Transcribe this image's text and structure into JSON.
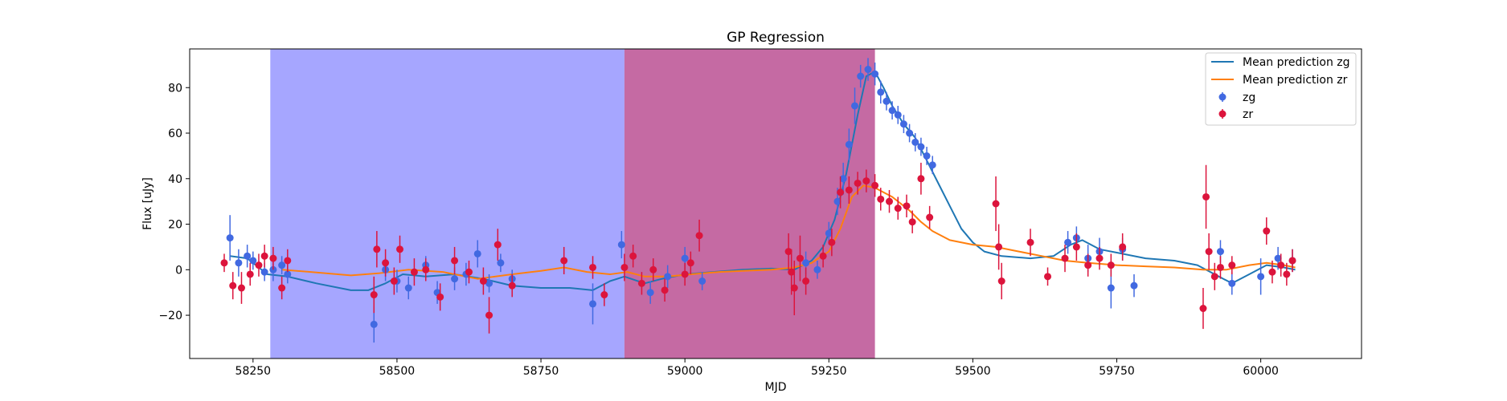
{
  "chart_data": {
    "type": "scatter",
    "title": "GP Regression",
    "xlabel": "MJD",
    "ylabel": "Flux [uJy]",
    "xlim": [
      58140,
      60175
    ],
    "ylim": [
      -39,
      97
    ],
    "xticks": [
      58250,
      58500,
      58750,
      59000,
      59250,
      59500,
      59750,
      60000
    ],
    "yticks": [
      -20,
      0,
      20,
      40,
      60,
      80
    ],
    "grid": false,
    "legend_position": "top-right",
    "shaded_regions": [
      {
        "x": [
          58280,
          58895
        ],
        "color": "#a6a6ff"
      },
      {
        "x": [
          58895,
          59330
        ],
        "color": "#c56aa3"
      }
    ],
    "lines": [
      {
        "name": "Mean prediction zg",
        "color": "#1f77b4",
        "points": [
          [
            58210,
            6
          ],
          [
            58240,
            5
          ],
          [
            58275,
            -2
          ],
          [
            58310,
            -3
          ],
          [
            58360,
            -6
          ],
          [
            58420,
            -9
          ],
          [
            58450,
            -9
          ],
          [
            58480,
            -6
          ],
          [
            58510,
            -2
          ],
          [
            58550,
            -3
          ],
          [
            58600,
            -2
          ],
          [
            58650,
            -4
          ],
          [
            58700,
            -7
          ],
          [
            58750,
            -8
          ],
          [
            58800,
            -8
          ],
          [
            58840,
            -9
          ],
          [
            58870,
            -5
          ],
          [
            58895,
            -3
          ],
          [
            58930,
            -6
          ],
          [
            58960,
            -4
          ],
          [
            59000,
            -2
          ],
          [
            59050,
            -1
          ],
          [
            59100,
            0
          ],
          [
            59150,
            0.5
          ],
          [
            59190,
            0
          ],
          [
            59220,
            4
          ],
          [
            59240,
            10
          ],
          [
            59260,
            22
          ],
          [
            59280,
            42
          ],
          [
            59300,
            68
          ],
          [
            59315,
            85
          ],
          [
            59330,
            87
          ],
          [
            59345,
            80
          ],
          [
            59360,
            72
          ],
          [
            59380,
            64
          ],
          [
            59400,
            58
          ],
          [
            59420,
            48
          ],
          [
            59440,
            38
          ],
          [
            59460,
            28
          ],
          [
            59480,
            18
          ],
          [
            59500,
            12
          ],
          [
            59520,
            8
          ],
          [
            59550,
            6
          ],
          [
            59600,
            5
          ],
          [
            59640,
            6
          ],
          [
            59670,
            11
          ],
          [
            59690,
            13
          ],
          [
            59720,
            9
          ],
          [
            59760,
            7
          ],
          [
            59800,
            5
          ],
          [
            59850,
            4
          ],
          [
            59890,
            2
          ],
          [
            59920,
            -2
          ],
          [
            59950,
            -6
          ],
          [
            59980,
            -2
          ],
          [
            60010,
            2
          ],
          [
            60040,
            1
          ],
          [
            60060,
            0
          ]
        ]
      },
      {
        "name": "Mean prediction zr",
        "color": "#ff7f0e",
        "points": [
          [
            58300,
            0
          ],
          [
            58350,
            -1
          ],
          [
            58420,
            -2.5
          ],
          [
            58470,
            -1.5
          ],
          [
            58520,
            0
          ],
          [
            58580,
            -1
          ],
          [
            58640,
            -4
          ],
          [
            58700,
            -2
          ],
          [
            58750,
            -0.5
          ],
          [
            58790,
            1
          ],
          [
            58830,
            -1
          ],
          [
            58870,
            -2
          ],
          [
            58900,
            -1
          ],
          [
            58930,
            -3
          ],
          [
            58970,
            -3
          ],
          [
            59010,
            -2
          ],
          [
            59060,
            -1
          ],
          [
            59100,
            -0.5
          ],
          [
            59150,
            0
          ],
          [
            59190,
            1
          ],
          [
            59220,
            3
          ],
          [
            59250,
            8
          ],
          [
            59270,
            18
          ],
          [
            59290,
            32
          ],
          [
            59310,
            37
          ],
          [
            59330,
            36
          ],
          [
            59360,
            32
          ],
          [
            59390,
            26
          ],
          [
            59410,
            21
          ],
          [
            59430,
            17
          ],
          [
            59460,
            13
          ],
          [
            59500,
            11
          ],
          [
            59540,
            10
          ],
          [
            59580,
            8
          ],
          [
            59620,
            6
          ],
          [
            59660,
            4
          ],
          [
            59700,
            3
          ],
          [
            59750,
            2
          ],
          [
            59800,
            1.5
          ],
          [
            59850,
            1
          ],
          [
            59900,
            0
          ],
          [
            59940,
            0
          ],
          [
            59980,
            2
          ],
          [
            60010,
            3
          ],
          [
            60040,
            2
          ],
          [
            60060,
            1
          ]
        ]
      }
    ],
    "series": [
      {
        "name": "zg",
        "color": "#4169e1",
        "points": [
          [
            58210,
            14,
            10
          ],
          [
            58225,
            3,
            6
          ],
          [
            58240,
            6,
            5
          ],
          [
            58250,
            4,
            4
          ],
          [
            58270,
            -1,
            4
          ],
          [
            58285,
            0,
            5
          ],
          [
            58300,
            2,
            4
          ],
          [
            58310,
            -2,
            4
          ],
          [
            58460,
            -24,
            8
          ],
          [
            58480,
            0,
            5
          ],
          [
            58500,
            -5,
            5
          ],
          [
            58520,
            -8,
            5
          ],
          [
            58550,
            2,
            4
          ],
          [
            58570,
            -10,
            5
          ],
          [
            58600,
            -4,
            5
          ],
          [
            58620,
            -2,
            5
          ],
          [
            58640,
            7,
            6
          ],
          [
            58660,
            -6,
            4
          ],
          [
            58680,
            3,
            4
          ],
          [
            58700,
            -4,
            4
          ],
          [
            58840,
            -15,
            9
          ],
          [
            58890,
            11,
            6
          ],
          [
            58940,
            -10,
            5
          ],
          [
            58970,
            -3,
            5
          ],
          [
            59000,
            5,
            5
          ],
          [
            59030,
            -5,
            4
          ],
          [
            59210,
            3,
            5
          ],
          [
            59230,
            0,
            4
          ],
          [
            59250,
            16,
            5
          ],
          [
            59265,
            30,
            6
          ],
          [
            59275,
            40,
            7
          ],
          [
            59285,
            55,
            7
          ],
          [
            59295,
            72,
            8
          ],
          [
            59305,
            85,
            5
          ],
          [
            59318,
            88,
            5
          ],
          [
            59330,
            86,
            5
          ],
          [
            59340,
            78,
            5
          ],
          [
            59350,
            74,
            4
          ],
          [
            59360,
            70,
            4
          ],
          [
            59370,
            68,
            4
          ],
          [
            59380,
            64,
            4
          ],
          [
            59390,
            60,
            4
          ],
          [
            59400,
            56,
            4
          ],
          [
            59410,
            54,
            4
          ],
          [
            59420,
            50,
            4
          ],
          [
            59430,
            46,
            4
          ],
          [
            59665,
            12,
            5
          ],
          [
            59680,
            14,
            5
          ],
          [
            59700,
            5,
            6
          ],
          [
            59720,
            8,
            6
          ],
          [
            59740,
            -8,
            9
          ],
          [
            59760,
            9,
            5
          ],
          [
            59780,
            -7,
            5
          ],
          [
            59930,
            8,
            5
          ],
          [
            59950,
            -6,
            5
          ],
          [
            60000,
            -3,
            8
          ],
          [
            60030,
            5,
            5
          ],
          [
            60055,
            4,
            5
          ]
        ]
      },
      {
        "name": "zr",
        "color": "#dc143c",
        "points": [
          [
            58200,
            3,
            4
          ],
          [
            58215,
            -7,
            6
          ],
          [
            58230,
            -8,
            7
          ],
          [
            58245,
            -2,
            5
          ],
          [
            58260,
            2,
            5
          ],
          [
            58270,
            6,
            5
          ],
          [
            58285,
            5,
            5
          ],
          [
            58300,
            -8,
            5
          ],
          [
            58310,
            4,
            5
          ],
          [
            58460,
            -11,
            8
          ],
          [
            58465,
            9,
            8
          ],
          [
            58480,
            3,
            6
          ],
          [
            58495,
            -5,
            6
          ],
          [
            58505,
            9,
            6
          ],
          [
            58530,
            -1,
            6
          ],
          [
            58550,
            0,
            5
          ],
          [
            58575,
            -12,
            6
          ],
          [
            58600,
            4,
            6
          ],
          [
            58625,
            -1,
            5
          ],
          [
            58650,
            -5,
            6
          ],
          [
            58660,
            -20,
            8
          ],
          [
            58675,
            11,
            7
          ],
          [
            58700,
            -7,
            5
          ],
          [
            58790,
            4,
            6
          ],
          [
            58840,
            1,
            5
          ],
          [
            58860,
            -11,
            5
          ],
          [
            58895,
            1,
            6
          ],
          [
            58910,
            6,
            5
          ],
          [
            58925,
            -6,
            5
          ],
          [
            58945,
            0,
            5
          ],
          [
            58965,
            -9,
            5
          ],
          [
            59000,
            -2,
            5
          ],
          [
            59010,
            3,
            5
          ],
          [
            59025,
            15,
            7
          ],
          [
            59180,
            8,
            8
          ],
          [
            59185,
            -1,
            10
          ],
          [
            59190,
            -8,
            12
          ],
          [
            59200,
            5,
            10
          ],
          [
            59210,
            -5,
            6
          ],
          [
            59240,
            6,
            5
          ],
          [
            59255,
            12,
            6
          ],
          [
            59270,
            34,
            7
          ],
          [
            59285,
            35,
            6
          ],
          [
            59300,
            38,
            5
          ],
          [
            59315,
            39,
            5
          ],
          [
            59330,
            37,
            5
          ],
          [
            59340,
            31,
            5
          ],
          [
            59355,
            30,
            5
          ],
          [
            59370,
            27,
            5
          ],
          [
            59385,
            28,
            5
          ],
          [
            59395,
            21,
            5
          ],
          [
            59410,
            40,
            7
          ],
          [
            59425,
            23,
            5
          ],
          [
            59540,
            29,
            12
          ],
          [
            59545,
            10,
            10
          ],
          [
            59550,
            -5,
            8
          ],
          [
            59600,
            12,
            6
          ],
          [
            59630,
            -3,
            4
          ],
          [
            59660,
            5,
            6
          ],
          [
            59680,
            10,
            6
          ],
          [
            59700,
            2,
            5
          ],
          [
            59720,
            5,
            5
          ],
          [
            59740,
            2,
            5
          ],
          [
            59760,
            10,
            6
          ],
          [
            59900,
            -17,
            9
          ],
          [
            59905,
            32,
            14
          ],
          [
            59910,
            8,
            8
          ],
          [
            59920,
            -3,
            6
          ],
          [
            59930,
            1,
            5
          ],
          [
            59950,
            2,
            4
          ],
          [
            60010,
            17,
            6
          ],
          [
            60020,
            -1,
            5
          ],
          [
            60035,
            2,
            5
          ],
          [
            60045,
            -2,
            5
          ],
          [
            60055,
            4,
            5
          ]
        ]
      }
    ]
  }
}
